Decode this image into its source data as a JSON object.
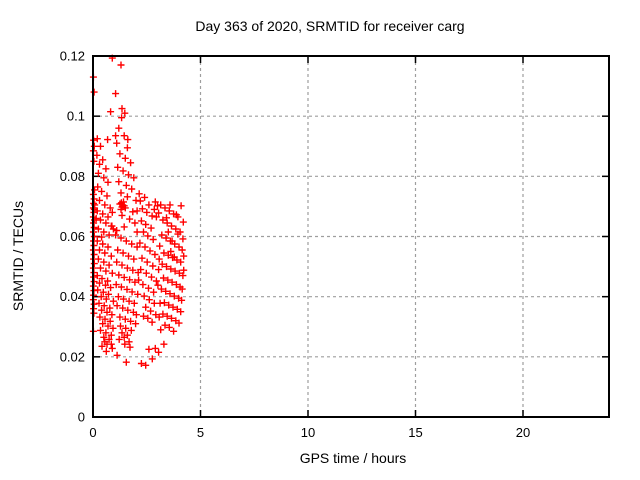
{
  "chart_data": {
    "type": "scatter",
    "title": "Day 363 of 2020, SRMTID for receiver carg",
    "xlabel": "GPS time / hours",
    "ylabel": "SRMTID / TECUs",
    "xlim": [
      0,
      24
    ],
    "ylim": [
      0,
      0.12
    ],
    "xticks": [
      0,
      5,
      10,
      15,
      20
    ],
    "xtick_labels": [
      "0",
      "5",
      "10",
      "15",
      "20"
    ],
    "yticks": [
      0,
      0.02,
      0.04,
      0.06,
      0.08,
      0.1,
      0.12
    ],
    "ytick_labels": [
      "0",
      "0.02",
      "0.04",
      "0.06",
      "0.08",
      "0.1",
      "0.12"
    ],
    "grid": true,
    "legend": "none",
    "marker": "plus",
    "marker_color": "#ff0000",
    "grid_color": "#9e9e9e",
    "border_color": "#000000",
    "series_name": "SRMTID",
    "points": [
      [
        0.02,
        0.113
      ],
      [
        0.05,
        0.108
      ],
      [
        0.03,
        0.092
      ],
      [
        0.06,
        0.09
      ],
      [
        0.02,
        0.0885
      ],
      [
        0.04,
        0.085
      ],
      [
        0.07,
        0.0755
      ],
      [
        0.02,
        0.074
      ],
      [
        0.05,
        0.0725
      ],
      [
        0.03,
        0.071
      ],
      [
        0.08,
        0.0705
      ],
      [
        0.02,
        0.0695
      ],
      [
        0.06,
        0.069
      ],
      [
        0.04,
        0.068
      ],
      [
        0.02,
        0.0665
      ],
      [
        0.07,
        0.0655
      ],
      [
        0.03,
        0.0645
      ],
      [
        0.05,
        0.063
      ],
      [
        0.02,
        0.0615
      ],
      [
        0.06,
        0.06
      ],
      [
        0.03,
        0.0585
      ],
      [
        0.04,
        0.057
      ],
      [
        0.02,
        0.0555
      ],
      [
        0.05,
        0.054
      ],
      [
        0.03,
        0.0525
      ],
      [
        0.06,
        0.051
      ],
      [
        0.02,
        0.0495
      ],
      [
        0.04,
        0.048
      ],
      [
        0.03,
        0.0465
      ],
      [
        0.05,
        0.045
      ],
      [
        0.02,
        0.0435
      ],
      [
        0.04,
        0.042
      ],
      [
        0.03,
        0.0405
      ],
      [
        0.02,
        0.039
      ],
      [
        0.05,
        0.0375
      ],
      [
        0.03,
        0.036
      ],
      [
        0.04,
        0.0345
      ],
      [
        0.02,
        0.0285
      ],
      [
        0.2,
        0.0925
      ],
      [
        0.35,
        0.09
      ],
      [
        0.18,
        0.087
      ],
      [
        0.45,
        0.0855
      ],
      [
        0.3,
        0.084
      ],
      [
        0.6,
        0.0825
      ],
      [
        0.25,
        0.081
      ],
      [
        0.5,
        0.0795
      ],
      [
        0.7,
        0.078
      ],
      [
        0.22,
        0.0765
      ],
      [
        0.4,
        0.075
      ],
      [
        0.65,
        0.0735
      ],
      [
        0.3,
        0.072
      ],
      [
        0.55,
        0.0705
      ],
      [
        0.8,
        0.0695
      ],
      [
        0.2,
        0.0685
      ],
      [
        0.45,
        0.0675
      ],
      [
        0.7,
        0.0665
      ],
      [
        0.35,
        0.0655
      ],
      [
        0.6,
        0.0645
      ],
      [
        0.85,
        0.0635
      ],
      [
        0.25,
        0.0625
      ],
      [
        0.5,
        0.0615
      ],
      [
        0.75,
        0.0605
      ],
      [
        0.4,
        0.0598
      ],
      [
        0.9,
        0.068
      ],
      [
        0.15,
        0.066
      ],
      [
        0.95,
        0.0625
      ],
      [
        0.68,
        0.0922
      ],
      [
        0.88,
        0.0635
      ],
      [
        0.2,
        0.0585
      ],
      [
        0.45,
        0.0575
      ],
      [
        0.7,
        0.0565
      ],
      [
        0.3,
        0.0555
      ],
      [
        0.55,
        0.0545
      ],
      [
        0.85,
        0.0535
      ],
      [
        0.25,
        0.0525
      ],
      [
        0.5,
        0.0515
      ],
      [
        0.75,
        0.0505
      ],
      [
        0.35,
        0.0495
      ],
      [
        0.6,
        0.0485
      ],
      [
        0.9,
        0.0478
      ],
      [
        0.2,
        0.047
      ],
      [
        0.42,
        0.046
      ],
      [
        0.68,
        0.0452
      ],
      [
        0.3,
        0.0445
      ],
      [
        0.58,
        0.0438
      ],
      [
        0.82,
        0.043
      ],
      [
        0.22,
        0.0422
      ],
      [
        0.48,
        0.0415
      ],
      [
        0.72,
        0.0408
      ],
      [
        0.38,
        0.04
      ],
      [
        0.62,
        0.0392
      ],
      [
        0.95,
        0.0385
      ],
      [
        0.28,
        0.0378
      ],
      [
        0.52,
        0.037
      ],
      [
        0.78,
        0.0362
      ],
      [
        0.4,
        0.0355
      ],
      [
        0.65,
        0.0348
      ],
      [
        0.88,
        0.034
      ],
      [
        0.32,
        0.0332
      ],
      [
        0.56,
        0.0325
      ],
      [
        0.8,
        0.0318
      ],
      [
        0.45,
        0.031
      ],
      [
        0.7,
        0.0302
      ],
      [
        0.93,
        0.0295
      ],
      [
        0.35,
        0.0288
      ],
      [
        0.6,
        0.028
      ],
      [
        0.85,
        0.0272
      ],
      [
        0.5,
        0.0265
      ],
      [
        0.75,
        0.0258
      ],
      [
        0.55,
        0.025
      ],
      [
        0.65,
        0.0242
      ],
      [
        0.42,
        0.0235
      ],
      [
        0.9,
        0.0228
      ],
      [
        0.9,
        0.1193
      ],
      [
        1.3,
        0.117
      ],
      [
        1.05,
        0.1075
      ],
      [
        0.82,
        0.1015
      ],
      [
        1.35,
        0.1025
      ],
      [
        1.48,
        0.101
      ],
      [
        1.33,
        0.0995
      ],
      [
        1.2,
        0.096
      ],
      [
        1.45,
        0.0935
      ],
      [
        1.1,
        0.091
      ],
      [
        1.6,
        0.0895
      ],
      [
        1.25,
        0.0875
      ],
      [
        1.5,
        0.086
      ],
      [
        1.75,
        0.0845
      ],
      [
        1.15,
        0.083
      ],
      [
        1.4,
        0.0818
      ],
      [
        1.65,
        0.0805
      ],
      [
        1.9,
        0.0795
      ],
      [
        1.2,
        0.0782
      ],
      [
        1.55,
        0.077
      ],
      [
        1.8,
        0.0758
      ],
      [
        1.3,
        0.0745
      ],
      [
        1.6,
        0.0732
      ],
      [
        2.0,
        0.072
      ],
      [
        1.25,
        0.0708
      ],
      [
        1.5,
        0.0695
      ],
      [
        1.85,
        0.0682
      ],
      [
        1.35,
        0.067
      ],
      [
        1.7,
        0.0658
      ],
      [
        1.95,
        0.0645
      ],
      [
        1.45,
        0.0632
      ],
      [
        1.1,
        0.062
      ],
      [
        2.05,
        0.0685
      ],
      [
        1.05,
        0.0935
      ],
      [
        1.62,
        0.0922
      ],
      [
        1.32,
        0.0712
      ],
      [
        1.38,
        0.0705
      ],
      [
        1.35,
        0.0698
      ],
      [
        1.42,
        0.0715
      ],
      [
        1.3,
        0.069
      ],
      [
        1.45,
        0.0702
      ],
      [
        1.05,
        0.0605
      ],
      [
        1.3,
        0.0595
      ],
      [
        1.55,
        0.0585
      ],
      [
        1.8,
        0.0575
      ],
      [
        2.05,
        0.0565
      ],
      [
        1.15,
        0.0555
      ],
      [
        1.4,
        0.0545
      ],
      [
        1.65,
        0.0535
      ],
      [
        1.9,
        0.0525
      ],
      [
        1.1,
        0.0515
      ],
      [
        1.35,
        0.0505
      ],
      [
        1.6,
        0.0495
      ],
      [
        1.85,
        0.0488
      ],
      [
        2.1,
        0.048
      ],
      [
        1.2,
        0.0472
      ],
      [
        1.45,
        0.0464
      ],
      [
        1.7,
        0.0456
      ],
      [
        1.95,
        0.0448
      ],
      [
        1.08,
        0.044
      ],
      [
        1.32,
        0.0432
      ],
      [
        1.58,
        0.0424
      ],
      [
        1.82,
        0.0416
      ],
      [
        2.08,
        0.0408
      ],
      [
        1.18,
        0.04
      ],
      [
        1.42,
        0.0392
      ],
      [
        1.68,
        0.0385
      ],
      [
        1.92,
        0.0378
      ],
      [
        1.12,
        0.037
      ],
      [
        1.38,
        0.0362
      ],
      [
        1.62,
        0.0355
      ],
      [
        1.88,
        0.0348
      ],
      [
        2.02,
        0.034
      ],
      [
        1.25,
        0.0332
      ],
      [
        1.5,
        0.0325
      ],
      [
        1.75,
        0.0318
      ],
      [
        1.98,
        0.031
      ],
      [
        1.28,
        0.0302
      ],
      [
        1.52,
        0.0295
      ],
      [
        1.78,
        0.0288
      ],
      [
        1.35,
        0.028
      ],
      [
        1.6,
        0.0272
      ],
      [
        1.45,
        0.0265
      ],
      [
        1.22,
        0.0258
      ],
      [
        1.68,
        0.025
      ],
      [
        1.48,
        0.0242
      ],
      [
        1.72,
        0.0232
      ],
      [
        2.15,
        0.0742
      ],
      [
        2.4,
        0.073
      ],
      [
        2.2,
        0.0718
      ],
      [
        2.6,
        0.0705
      ],
      [
        2.3,
        0.0692
      ],
      [
        2.5,
        0.068
      ],
      [
        2.75,
        0.0668
      ],
      [
        2.9,
        0.0715
      ],
      [
        3.0,
        0.0702
      ],
      [
        2.85,
        0.069
      ],
      [
        3.05,
        0.0678
      ],
      [
        2.95,
        0.0665
      ],
      [
        2.25,
        0.0652
      ],
      [
        2.45,
        0.064
      ],
      [
        2.7,
        0.0628
      ],
      [
        2.35,
        0.0615
      ],
      [
        2.55,
        0.0602
      ],
      [
        2.8,
        0.059
      ],
      [
        2.18,
        0.0578
      ],
      [
        2.42,
        0.0565
      ],
      [
        2.65,
        0.0552
      ],
      [
        2.88,
        0.054
      ],
      [
        2.28,
        0.0528
      ],
      [
        2.52,
        0.0515
      ],
      [
        2.78,
        0.0502
      ],
      [
        2.22,
        0.049
      ],
      [
        2.48,
        0.0478
      ],
      [
        2.72,
        0.0465
      ],
      [
        2.95,
        0.0452
      ],
      [
        2.32,
        0.044
      ],
      [
        2.58,
        0.0428
      ],
      [
        2.82,
        0.0415
      ],
      [
        2.38,
        0.0402
      ],
      [
        2.62,
        0.039
      ],
      [
        2.85,
        0.0378
      ],
      [
        2.45,
        0.0365
      ],
      [
        2.68,
        0.0352
      ],
      [
        2.92,
        0.034
      ],
      [
        2.55,
        0.0328
      ],
      [
        2.75,
        0.0315
      ],
      [
        3.02,
        0.0438
      ],
      [
        3.08,
        0.0525
      ],
      [
        2.12,
        0.0455
      ],
      [
        2.05,
        0.0615
      ],
      [
        2.35,
        0.0335
      ],
      [
        3.15,
        0.0705
      ],
      [
        3.35,
        0.0695
      ],
      [
        3.55,
        0.0685
      ],
      [
        3.75,
        0.0675
      ],
      [
        3.95,
        0.0665
      ],
      [
        4.1,
        0.0702
      ],
      [
        3.25,
        0.0655
      ],
      [
        3.45,
        0.0645
      ],
      [
        3.65,
        0.0635
      ],
      [
        3.85,
        0.0625
      ],
      [
        4.05,
        0.0615
      ],
      [
        4.2,
        0.0648
      ],
      [
        3.2,
        0.0605
      ],
      [
        3.4,
        0.0595
      ],
      [
        3.6,
        0.0585
      ],
      [
        3.8,
        0.0575
      ],
      [
        4.0,
        0.0565
      ],
      [
        4.15,
        0.0555
      ],
      [
        3.3,
        0.0545
      ],
      [
        3.5,
        0.0538
      ],
      [
        3.7,
        0.053
      ],
      [
        3.9,
        0.0522
      ],
      [
        4.08,
        0.0515
      ],
      [
        3.22,
        0.0508
      ],
      [
        3.42,
        0.05
      ],
      [
        3.62,
        0.0492
      ],
      [
        3.82,
        0.0485
      ],
      [
        4.02,
        0.0478
      ],
      [
        4.18,
        0.047
      ],
      [
        3.28,
        0.0462
      ],
      [
        3.48,
        0.0455
      ],
      [
        3.68,
        0.0448
      ],
      [
        3.88,
        0.044
      ],
      [
        4.05,
        0.0432
      ],
      [
        3.18,
        0.0425
      ],
      [
        3.38,
        0.0418
      ],
      [
        3.58,
        0.041
      ],
      [
        3.78,
        0.0402
      ],
      [
        3.98,
        0.0395
      ],
      [
        4.12,
        0.0388
      ],
      [
        3.32,
        0.038
      ],
      [
        3.52,
        0.0372
      ],
      [
        3.72,
        0.0365
      ],
      [
        3.92,
        0.0358
      ],
      [
        4.08,
        0.035
      ],
      [
        3.25,
        0.0342
      ],
      [
        3.45,
        0.0335
      ],
      [
        3.65,
        0.0328
      ],
      [
        3.85,
        0.032
      ],
      [
        4.0,
        0.0312
      ],
      [
        3.35,
        0.0305
      ],
      [
        3.55,
        0.0298
      ],
      [
        3.15,
        0.029
      ],
      [
        3.75,
        0.0285
      ],
      [
        4.15,
        0.0425
      ],
      [
        4.22,
        0.0535
      ],
      [
        4.22,
        0.0488
      ],
      [
        3.95,
        0.0608
      ],
      [
        3.5,
        0.0615
      ],
      [
        3.1,
        0.0568
      ],
      [
        3.05,
        0.049
      ],
      [
        3.12,
        0.0378
      ],
      [
        3.08,
        0.0332
      ],
      [
        4.18,
        0.0592
      ],
      [
        3.88,
        0.0672
      ],
      [
        3.42,
        0.0662
      ],
      [
        3.58,
        0.0705
      ],
      [
        3.62,
        0.055
      ],
      [
        3.78,
        0.0532
      ],
      [
        3.68,
        0.0585
      ],
      [
        1.12,
        0.0205
      ],
      [
        1.55,
        0.0182
      ],
      [
        2.25,
        0.0178
      ],
      [
        2.45,
        0.0172
      ],
      [
        2.76,
        0.0193
      ],
      [
        3.05,
        0.0215
      ],
      [
        2.9,
        0.0228
      ],
      [
        3.3,
        0.0242
      ],
      [
        2.6,
        0.0225
      ],
      [
        0.62,
        0.0218
      ],
      [
        0.85,
        0.0242
      ]
    ]
  }
}
